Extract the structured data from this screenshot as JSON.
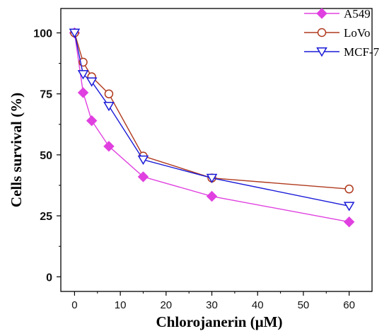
{
  "chart_data": {
    "type": "line",
    "xlabel": "Chlorojanerin (μM)",
    "ylabel": "Cells survival (%)",
    "x_ticks": [
      "0",
      "10",
      "20",
      "30",
      "40",
      "50",
      "60"
    ],
    "y_ticks": [
      "0",
      "25",
      "50",
      "75",
      "100"
    ],
    "xlim": [
      -3,
      65
    ],
    "ylim": [
      -6,
      110
    ],
    "grid": false,
    "legend_position": "top-right",
    "x": [
      0,
      1.875,
      3.75,
      7.5,
      15,
      30,
      60
    ],
    "series": [
      {
        "name": "A549",
        "color": "#e040e0",
        "marker": "diamond-filled",
        "values": [
          100,
          75.5,
          64,
          53.5,
          41,
          33,
          22.5
        ]
      },
      {
        "name": "LoVo",
        "color": "#b03a1e",
        "marker": "circle-open",
        "values": [
          100,
          88,
          82,
          75,
          49.5,
          40.5,
          36
        ]
      },
      {
        "name": "MCF-7",
        "color": "#1a1ad8",
        "marker": "triangle-down-open",
        "values": [
          100,
          83,
          80,
          70,
          48,
          40.5,
          29
        ]
      }
    ]
  }
}
